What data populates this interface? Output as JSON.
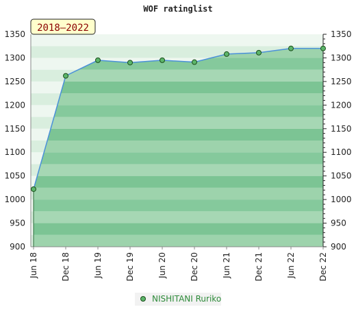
{
  "chart_data": {
    "type": "area",
    "title": "WOF ratinglist",
    "period_label": "2018–2022",
    "categories": [
      "Jun 18",
      "Dec 18",
      "Jun 19",
      "Dec 19",
      "Jun 20",
      "Dec 20",
      "Jun 21",
      "Dec 21",
      "Jun 22",
      "Dec 22"
    ],
    "series": [
      {
        "name": "NISHITANI Ruriko",
        "values": [
          1022,
          1262,
          1295,
          1290,
          1295,
          1291,
          1308,
          1311,
          1320,
          1320
        ]
      }
    ],
    "ylim": [
      900,
      1350
    ],
    "yticks": [
      900,
      950,
      1000,
      1050,
      1100,
      1150,
      1200,
      1250,
      1300,
      1350
    ],
    "grid": true,
    "legend_position": "bottom",
    "colors": {
      "band_dark": "#7cc494",
      "band_light": "#9dd3ac",
      "band_top_dark": "#d9eede",
      "band_top_light": "#eef7f0",
      "line": "#4a90d9",
      "marker": "#5cb56a",
      "period_bg": "#ffffcc"
    }
  }
}
